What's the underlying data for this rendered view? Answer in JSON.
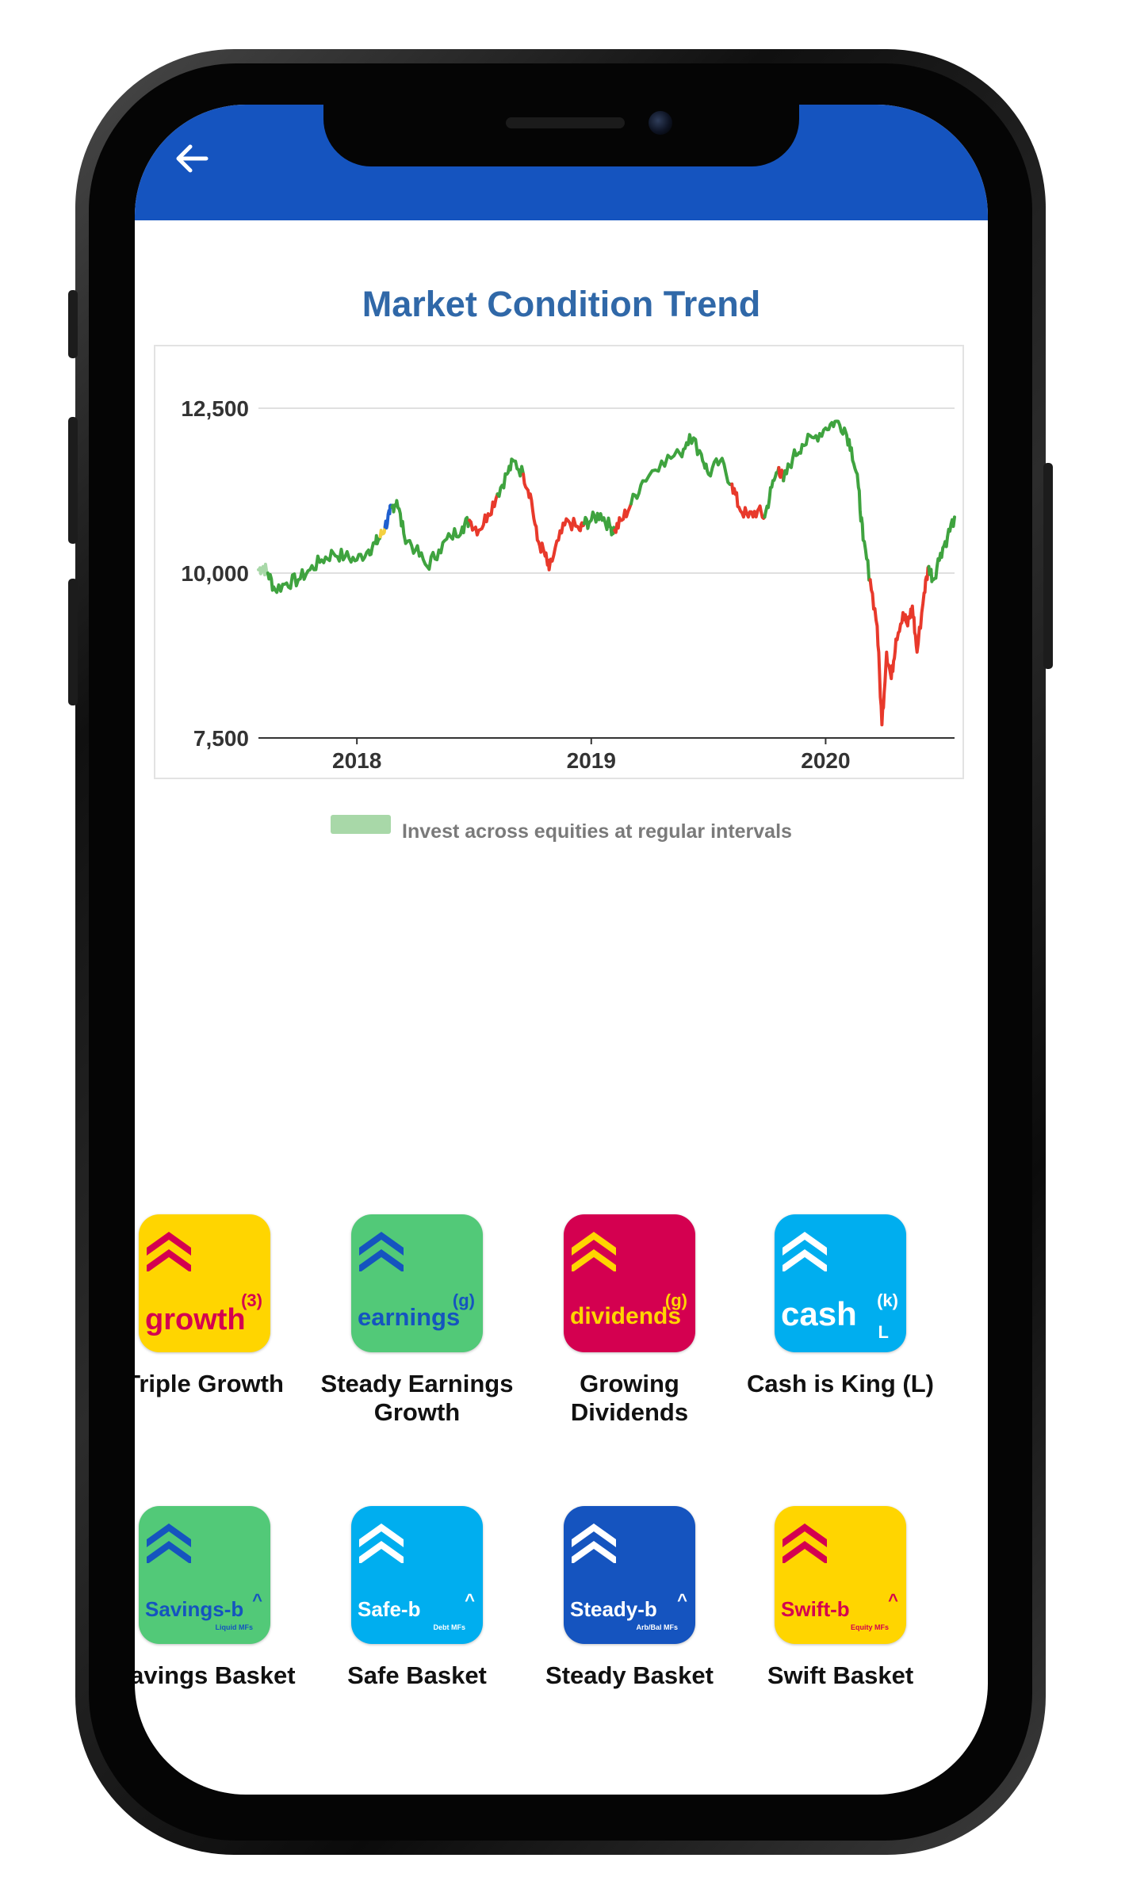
{
  "header": {
    "color": "#1554bf",
    "back_icon": "arrow-left-icon"
  },
  "chart_title": "Market Condition Trend",
  "legend": {
    "label": "Invest across equities at regular intervals",
    "color": "#a8d8a8"
  },
  "chart_data": {
    "type": "line",
    "title": "Market Condition Trend",
    "xlabel": "",
    "ylabel": "",
    "ylim": [
      7500,
      12500
    ],
    "yticks": [
      {
        "label": "12,500",
        "value": 12500
      },
      {
        "label": "10,000",
        "value": 10000
      },
      {
        "label": "7,500",
        "value": 7500
      }
    ],
    "xlim": [
      2017.58,
      2020.55
    ],
    "xticks": [
      {
        "label": "2018",
        "value": 2018.0
      },
      {
        "label": "2019",
        "value": 2019.0
      },
      {
        "label": "2020",
        "value": 2020.0
      }
    ],
    "grid": true,
    "legend_position": "bottom",
    "colors": {
      "green": "#3fa33f",
      "red": "#e8392b",
      "blue": "#1f5fcf",
      "yellow": "#f4d03f",
      "lightgreen": "#a8d8a8"
    },
    "segments": [
      {
        "color": "lightgreen",
        "points": [
          [
            2017.58,
            10050
          ],
          [
            2017.6,
            10100
          ],
          [
            2017.62,
            10000
          ]
        ]
      },
      {
        "color": "green",
        "points": [
          [
            2017.62,
            10000
          ],
          [
            2017.65,
            9750
          ],
          [
            2017.7,
            9850
          ],
          [
            2017.75,
            9900
          ],
          [
            2017.8,
            10050
          ],
          [
            2017.85,
            10200
          ],
          [
            2017.9,
            10300
          ],
          [
            2017.95,
            10250
          ],
          [
            2018.0,
            10200
          ],
          [
            2018.05,
            10350
          ],
          [
            2018.08,
            10450
          ],
          [
            2018.1,
            10550
          ]
        ]
      },
      {
        "color": "yellow",
        "points": [
          [
            2018.1,
            10550
          ],
          [
            2018.12,
            10700
          ]
        ]
      },
      {
        "color": "blue",
        "points": [
          [
            2018.12,
            10700
          ],
          [
            2018.14,
            10900
          ],
          [
            2018.15,
            11000
          ]
        ]
      },
      {
        "color": "green",
        "points": [
          [
            2018.15,
            11000
          ],
          [
            2018.17,
            11100
          ],
          [
            2018.2,
            10600
          ],
          [
            2018.25,
            10350
          ],
          [
            2018.3,
            10100
          ],
          [
            2018.35,
            10350
          ],
          [
            2018.4,
            10550
          ],
          [
            2018.45,
            10700
          ],
          [
            2018.48,
            10800
          ]
        ]
      },
      {
        "color": "red",
        "points": [
          [
            2018.48,
            10800
          ],
          [
            2018.52,
            10650
          ],
          [
            2018.56,
            10900
          ],
          [
            2018.6,
            11200
          ]
        ]
      },
      {
        "color": "green",
        "points": [
          [
            2018.6,
            11200
          ],
          [
            2018.64,
            11500
          ],
          [
            2018.67,
            11700
          ],
          [
            2018.71,
            11500
          ]
        ]
      },
      {
        "color": "red",
        "points": [
          [
            2018.71,
            11500
          ],
          [
            2018.74,
            11200
          ],
          [
            2018.77,
            10500
          ],
          [
            2018.8,
            10300
          ],
          [
            2018.82,
            10050
          ],
          [
            2018.86,
            10500
          ],
          [
            2018.9,
            10800
          ],
          [
            2018.95,
            10650
          ],
          [
            2018.97,
            10750
          ]
        ]
      },
      {
        "color": "green",
        "points": [
          [
            2018.97,
            10750
          ],
          [
            2019.0,
            10800
          ],
          [
            2019.04,
            10900
          ],
          [
            2019.08,
            10700
          ],
          [
            2019.1,
            10650
          ]
        ]
      },
      {
        "color": "red",
        "points": [
          [
            2019.1,
            10650
          ],
          [
            2019.13,
            10800
          ],
          [
            2019.17,
            11050
          ]
        ]
      },
      {
        "color": "green",
        "points": [
          [
            2019.17,
            11050
          ],
          [
            2019.22,
            11400
          ],
          [
            2019.3,
            11700
          ],
          [
            2019.38,
            11800
          ],
          [
            2019.42,
            12100
          ],
          [
            2019.47,
            11800
          ],
          [
            2019.5,
            11500
          ],
          [
            2019.55,
            11700
          ],
          [
            2019.6,
            11350
          ]
        ]
      },
      {
        "color": "red",
        "points": [
          [
            2019.6,
            11350
          ],
          [
            2019.63,
            11000
          ],
          [
            2019.67,
            10850
          ],
          [
            2019.71,
            10950
          ],
          [
            2019.74,
            10850
          ]
        ]
      },
      {
        "color": "green",
        "points": [
          [
            2019.74,
            10850
          ],
          [
            2019.77,
            11300
          ],
          [
            2019.8,
            11600
          ]
        ]
      },
      {
        "color": "red",
        "points": [
          [
            2019.8,
            11600
          ],
          [
            2019.82,
            11400
          ]
        ]
      },
      {
        "color": "green",
        "points": [
          [
            2019.82,
            11400
          ],
          [
            2019.86,
            11750
          ],
          [
            2019.9,
            11950
          ],
          [
            2019.95,
            12050
          ],
          [
            2020.0,
            12200
          ],
          [
            2020.04,
            12300
          ],
          [
            2020.08,
            12200
          ],
          [
            2020.11,
            11900
          ],
          [
            2020.14,
            11300
          ],
          [
            2020.16,
            10500
          ],
          [
            2020.19,
            9900
          ]
        ]
      },
      {
        "color": "red",
        "points": [
          [
            2020.19,
            9900
          ],
          [
            2020.22,
            9200
          ],
          [
            2020.24,
            7700
          ],
          [
            2020.26,
            8800
          ],
          [
            2020.28,
            8400
          ],
          [
            2020.3,
            9000
          ],
          [
            2020.33,
            9400
          ],
          [
            2020.35,
            9200
          ],
          [
            2020.37,
            9500
          ],
          [
            2020.39,
            8800
          ],
          [
            2020.42,
            9700
          ],
          [
            2020.44,
            10100
          ]
        ]
      },
      {
        "color": "green",
        "points": [
          [
            2020.44,
            10100
          ],
          [
            2020.46,
            9900
          ],
          [
            2020.49,
            10300
          ],
          [
            2020.52,
            10550
          ],
          [
            2020.55,
            10850
          ]
        ]
      }
    ]
  },
  "tiles": [
    {
      "label": "Triple Growth",
      "word": "growth",
      "sup": "(3)",
      "sub": "",
      "sub2": "",
      "bg": "#ffd500",
      "fg": "#d40050",
      "chev": "#d40050",
      "icon": "growth-icon"
    },
    {
      "label": "Steady Earnings Growth",
      "word": "earnings",
      "sup": "(g)",
      "sub": "",
      "sub2": "",
      "bg": "#52c978",
      "fg": "#1554bf",
      "chev": "#1554bf",
      "icon": "earnings-icon"
    },
    {
      "label": "Growing Dividends",
      "word": "dividends",
      "sup": "(g)",
      "sub": "",
      "sub2": "",
      "bg": "#d40050",
      "fg": "#ffd500",
      "chev": "#ffd500",
      "icon": "dividends-icon"
    },
    {
      "label": "Cash is King (L)",
      "word": "cash",
      "sup": "(k)",
      "sub": "L",
      "sub2": "",
      "bg": "#00aeef",
      "fg": "#ffffff",
      "chev": "#ffffff",
      "icon": "cash-icon"
    },
    {
      "label": "Savings Basket",
      "word": "Savings-b",
      "sup": "^",
      "sub": "",
      "sub2": "Liquid MFs",
      "bg": "#52c978",
      "fg": "#1554bf",
      "chev": "#1554bf",
      "icon": "savings-basket-icon"
    },
    {
      "label": "Safe Basket",
      "word": "Safe-b",
      "sup": "^",
      "sub": "",
      "sub2": "Debt MFs",
      "bg": "#00aeef",
      "fg": "#ffffff",
      "chev": "#ffffff",
      "icon": "safe-basket-icon"
    },
    {
      "label": "Steady Basket",
      "word": "Steady-b",
      "sup": "^",
      "sub": "",
      "sub2": "Arb/Bal MFs",
      "bg": "#1554bf",
      "fg": "#ffffff",
      "chev": "#ffffff",
      "icon": "steady-basket-icon"
    },
    {
      "label": "Swift Basket",
      "word": "Swift-b",
      "sup": "^",
      "sub": "",
      "sub2": "Equity MFs",
      "bg": "#ffd500",
      "fg": "#d40050",
      "chev": "#d40050",
      "icon": "swift-basket-icon"
    }
  ]
}
